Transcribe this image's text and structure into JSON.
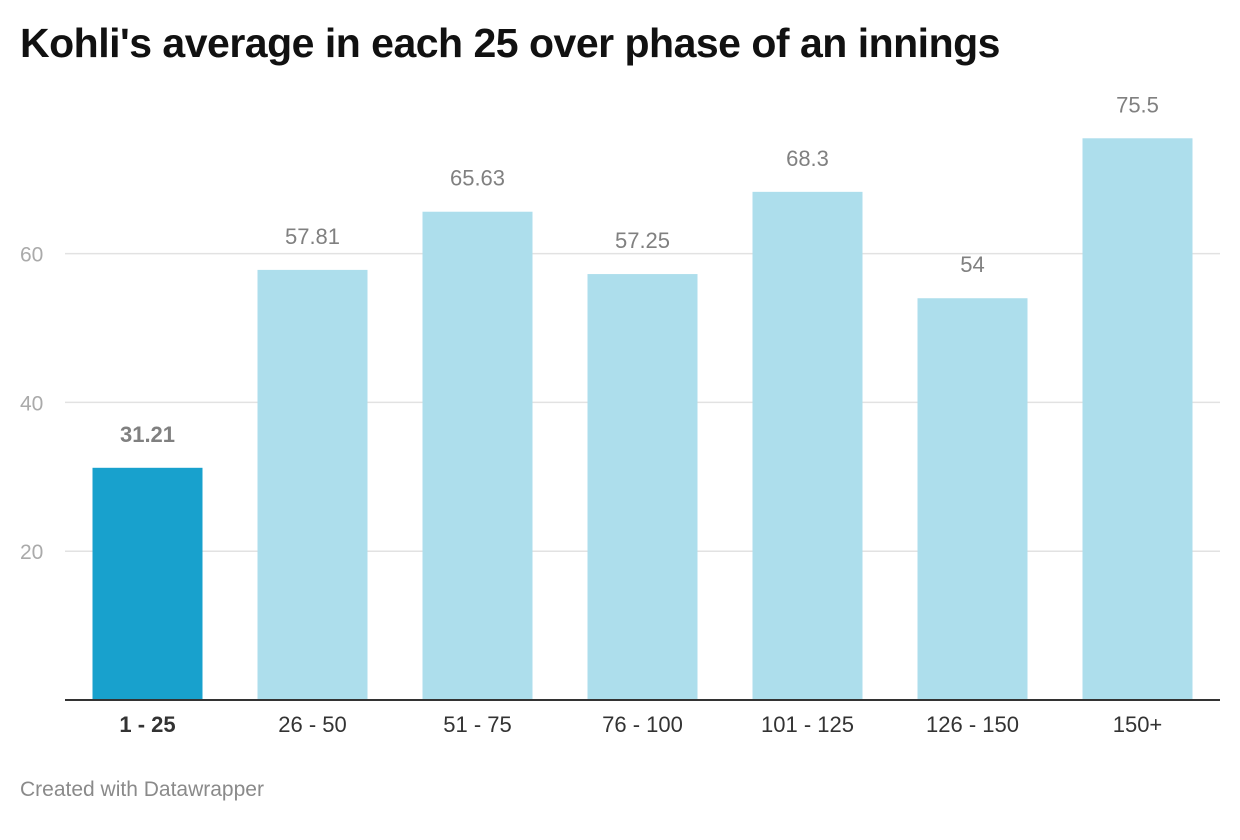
{
  "title": "Kohli's average in each 25 over phase of an innings",
  "footer": "Created with Datawrapper",
  "colors": {
    "highlight": "#18a1cd",
    "bar": "#addeec",
    "grid": "#e2e2e2",
    "axis": "#333333",
    "tick_text": "#aaaaaa",
    "value_text": "#808080",
    "category_text": "#333333"
  },
  "chart_data": {
    "type": "bar",
    "title": "Kohli's average in each 25 over phase of an innings",
    "xlabel": "",
    "ylabel": "",
    "categories": [
      "1 - 25",
      "26 - 50",
      "51 - 75",
      "76 - 100",
      "101 - 125",
      "126 - 150",
      "150+"
    ],
    "values": [
      31.21,
      57.81,
      65.63,
      57.25,
      68.3,
      54,
      75.5
    ],
    "value_labels": [
      "31.21",
      "57.81",
      "65.63",
      "57.25",
      "68.3",
      "54",
      "75.5"
    ],
    "highlighted_index": 0,
    "ylim": [
      0,
      80
    ],
    "yticks": [
      20,
      40,
      60
    ],
    "grid": true,
    "legend": "none"
  }
}
